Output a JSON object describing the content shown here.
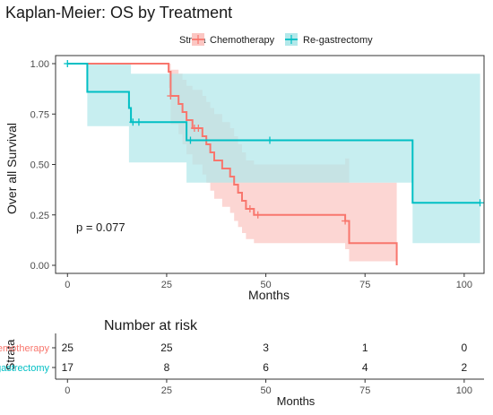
{
  "chart_data": [
    {
      "type": "line",
      "title": "Kaplan-Meier: OS by Treatment",
      "xlabel": "Months",
      "ylabel": "Over all Survival",
      "xlim": [
        -3,
        105
      ],
      "ylim": [
        -0.04,
        1.04
      ],
      "x_ticks": [
        0,
        25,
        50,
        75,
        100
      ],
      "y_ticks": [
        0.0,
        0.25,
        0.5,
        0.75,
        1.0
      ],
      "y_tick_labels": [
        "0.00",
        "0.25",
        "0.50",
        "0.75",
        "1.00"
      ],
      "grid": false,
      "annotation": "p = 0.077",
      "legend": {
        "title": "Strata",
        "placement": "top",
        "entries": [
          "Chemotherapy",
          "Re-gastrectomy"
        ]
      },
      "series": [
        {
          "name": "Chemotherapy",
          "color": "#F8766D",
          "band_color": "#FBC6C2",
          "steps": [
            [
              0,
              1.0
            ],
            [
              25.5,
              0.96
            ],
            [
              26,
              0.84
            ],
            [
              28,
              0.8
            ],
            [
              29,
              0.76
            ],
            [
              30,
              0.72
            ],
            [
              31.5,
              0.68
            ],
            [
              34,
              0.64
            ],
            [
              35,
              0.6
            ],
            [
              36,
              0.56
            ],
            [
              37,
              0.52
            ],
            [
              39,
              0.48
            ],
            [
              41,
              0.44
            ],
            [
              42,
              0.4
            ],
            [
              43,
              0.36
            ],
            [
              44,
              0.32
            ],
            [
              45,
              0.28
            ],
            [
              47,
              0.25
            ],
            [
              70,
              0.22
            ],
            [
              71,
              0.11
            ],
            [
              83,
              0.0
            ]
          ],
          "upper": [
            [
              0,
              1.0
            ],
            [
              25.5,
              1.0
            ],
            [
              26,
              0.97
            ],
            [
              28,
              0.95
            ],
            [
              29,
              0.92
            ],
            [
              30,
              0.89
            ],
            [
              31.5,
              0.87
            ],
            [
              34,
              0.84
            ],
            [
              35,
              0.81
            ],
            [
              36,
              0.78
            ],
            [
              37,
              0.75
            ],
            [
              39,
              0.71
            ],
            [
              41,
              0.68
            ],
            [
              42,
              0.64
            ],
            [
              43,
              0.6
            ],
            [
              44,
              0.56
            ],
            [
              45,
              0.52
            ],
            [
              47,
              0.5
            ],
            [
              70,
              0.53
            ],
            [
              71,
              0.41
            ],
            [
              83,
              0.41
            ]
          ],
          "lower": [
            [
              0,
              1.0
            ],
            [
              25.5,
              0.88
            ],
            [
              26,
              0.7
            ],
            [
              28,
              0.65
            ],
            [
              29,
              0.6
            ],
            [
              30,
              0.55
            ],
            [
              31.5,
              0.5
            ],
            [
              34,
              0.45
            ],
            [
              35,
              0.41
            ],
            [
              36,
              0.37
            ],
            [
              37,
              0.33
            ],
            [
              39,
              0.29
            ],
            [
              41,
              0.26
            ],
            [
              42,
              0.22
            ],
            [
              43,
              0.19
            ],
            [
              44,
              0.16
            ],
            [
              45,
              0.13
            ],
            [
              47,
              0.11
            ],
            [
              70,
              0.08
            ],
            [
              71,
              0.02
            ],
            [
              83,
              0.02
            ]
          ],
          "censor_x": [
            26,
            32,
            33,
            46,
            48,
            70
          ]
        },
        {
          "name": "Re-gastrectomy",
          "color": "#00BFC4",
          "band_color": "#B2E8EA",
          "steps": [
            [
              0,
              1.0
            ],
            [
              5,
              0.86
            ],
            [
              15.5,
              0.78
            ],
            [
              16,
              0.71
            ],
            [
              30,
              0.62
            ],
            [
              87,
              0.31
            ],
            [
              104,
              0.31
            ]
          ],
          "upper": [
            [
              0,
              1.0
            ],
            [
              5,
              1.0
            ],
            [
              15.5,
              1.0
            ],
            [
              16,
              0.95
            ],
            [
              30,
              0.95
            ],
            [
              87,
              0.95
            ],
            [
              104,
              0.95
            ]
          ],
          "lower": [
            [
              0,
              1.0
            ],
            [
              5,
              0.69
            ],
            [
              15.5,
              0.51
            ],
            [
              16,
              0.51
            ],
            [
              30,
              0.41
            ],
            [
              87,
              0.11
            ],
            [
              104,
              0.11
            ]
          ],
          "censor_x": [
            0,
            16.5,
            18,
            31,
            51,
            104
          ]
        }
      ]
    },
    {
      "type": "table",
      "title": "Number at risk",
      "xlabel": "Months",
      "ylabel": "Strata",
      "xlim": [
        -3,
        105
      ],
      "x_ticks": [
        0,
        25,
        50,
        75,
        100
      ],
      "rows": [
        {
          "name": "Chemotherapy",
          "color": "#F8766D",
          "values": [
            "25",
            "25",
            "3",
            "1",
            "0"
          ]
        },
        {
          "name": "Re-gastrectomy",
          "color": "#00BFC4",
          "values": [
            "17",
            "8",
            "6",
            "4",
            "2"
          ]
        }
      ]
    }
  ]
}
